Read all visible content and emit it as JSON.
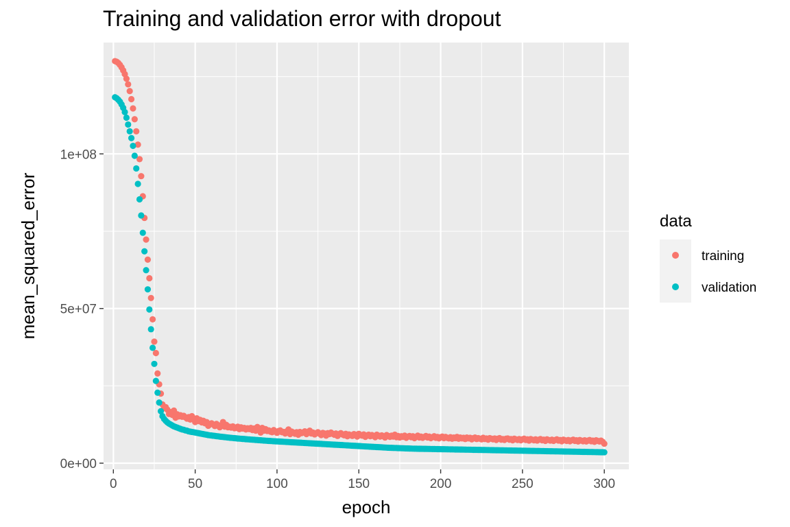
{
  "chart_data": {
    "type": "scatter",
    "title": "Training and validation error with dropout",
    "xlabel": "epoch",
    "ylabel": "mean_squared_error",
    "xlim": [
      -6,
      315
    ],
    "ylim": [
      -2000000,
      136000000
    ],
    "x_ticks": [
      0,
      50,
      100,
      150,
      200,
      250,
      300
    ],
    "x_tick_labels": [
      "0",
      "50",
      "100",
      "150",
      "200",
      "250",
      "300"
    ],
    "y_ticks": [
      0,
      50000000,
      100000000
    ],
    "y_tick_labels": [
      "0e+00",
      "5e+07",
      "1e+08"
    ],
    "grid": true,
    "legend": {
      "title": "data",
      "position": "right",
      "entries": [
        "training",
        "validation"
      ]
    },
    "x_range": [
      1,
      300
    ],
    "series": [
      {
        "name": "training",
        "color": "#F8766D",
        "x_start": 1,
        "x_step": 1,
        "values": [
          130000000,
          129800000,
          129400000,
          128800000,
          128000000,
          127000000,
          125800000,
          124300000,
          122500000,
          120300000,
          117700000,
          114700000,
          111200000,
          107300000,
          103000000,
          98300000,
          92800000,
          86300000,
          79300000,
          72300000,
          65800000,
          59800000,
          53400000,
          46500000,
          39300000,
          35600000,
          29000000,
          25500000,
          22500000,
          19000000,
          17800000,
          18100000,
          17300000,
          15900000,
          16500000,
          15600000,
          17000000,
          14700000,
          15800000,
          15100000,
          15500000,
          15000000,
          15300000,
          14800000,
          14400000,
          14900000,
          14100000,
          15200000,
          14500000,
          13300000,
          14500000,
          13600000,
          14000000,
          13200000,
          13700000,
          12900000,
          13300000,
          12100000,
          12600000,
          12900000,
          12500000,
          12000000,
          12700000,
          12300000,
          11600000,
          12200000,
          13300000,
          11800000,
          12400000,
          11600000,
          11800000,
          11500000,
          11900000,
          11300000,
          11400000,
          11800000,
          11000000,
          11600000,
          11200000,
          11400000,
          10900000,
          11300000,
          11000000,
          11400000,
          10700000,
          11200000,
          10500000,
          11700000,
          10800000,
          9900000,
          11400000,
          10500000,
          11000000,
          10400000,
          10600000,
          10200000,
          10000000,
          10700000,
          10300000,
          9800000,
          10400000,
          10600000,
          10000000,
          10100000,
          9600000,
          10300000,
          10900000,
          9400000,
          10200000,
          9900000,
          9500000,
          10000000,
          9200000,
          10100000,
          9700000,
          9900000,
          10300000,
          9400000,
          9800000,
          10500000,
          9600000,
          9900000,
          9300000,
          9700000,
          10000000,
          9500000,
          9100000,
          9800000,
          9600000,
          8900000,
          9700000,
          9400000,
          9900000,
          9500000,
          9200000,
          9600000,
          8800000,
          9400000,
          9700000,
          9300000,
          9000000,
          9500000,
          8700000,
          9300000,
          9100000,
          8800000,
          9400000,
          9200000,
          8600000,
          9500000,
          9100000,
          8900000,
          9300000,
          8500000,
          9000000,
          9200000,
          8700000,
          9100000,
          8800000,
          8400000,
          9200000,
          8900000,
          8600000,
          9000000,
          8700000,
          8300000,
          9100000,
          8800000,
          8500000,
          8900000,
          8600000,
          9200000,
          8400000,
          8800000,
          8300000,
          8700000,
          8500000,
          8900000,
          8200000,
          8600000,
          8800000,
          8400000,
          8700000,
          8100000,
          8500000,
          8900000,
          8300000,
          8600000,
          8200000,
          8500000,
          8800000,
          8300000,
          8600000,
          8100000,
          8400000,
          8700000,
          8200000,
          8500000,
          8000000,
          8400000,
          8600000,
          8100000,
          8500000,
          8200000,
          8000000,
          8400000,
          7900000,
          8300000,
          8100000,
          8500000,
          7900000,
          8300000,
          8000000,
          8200000,
          7800000,
          8300000,
          8000000,
          8200000,
          7700000,
          8100000,
          8300000,
          7800000,
          8100000,
          7900000,
          7700000,
          8200000,
          7800000,
          8000000,
          7600000,
          8100000,
          7900000,
          7700000,
          8000000,
          7500000,
          7900000,
          8100000,
          7600000,
          7800000,
          7500000,
          7900000,
          8000000,
          7600000,
          7800000,
          7400000,
          7900000,
          7700000,
          7500000,
          7800000,
          7400000,
          7700000,
          7900000,
          7500000,
          7700000,
          7300000,
          7800000,
          7600000,
          7400000,
          7700000,
          7300000,
          7600000,
          7800000,
          7400000,
          7600000,
          7200000,
          7700000,
          7500000,
          7300000,
          7600000,
          7200000,
          7500000,
          7700000,
          7300000,
          7500000,
          7100000,
          7600000,
          7400000,
          7200000,
          7500000,
          7100000,
          7400000,
          7600000,
          7200000,
          7400000,
          7000000,
          7500000,
          7300000,
          7100000,
          7400000,
          7000000,
          7300000,
          7500000,
          7100000,
          7300000,
          6900000,
          7400000,
          7200000,
          7000000,
          7300000,
          6900000,
          6300000
        ]
      },
      {
        "name": "validation",
        "color": "#00BFC4",
        "x_start": 1,
        "x_step": 1,
        "values": [
          118300000,
          118000000,
          117500000,
          116900000,
          116000000,
          114900000,
          113500000,
          111700000,
          109500000,
          107300000,
          105100000,
          102600000,
          99400000,
          95300000,
          90300000,
          85300000,
          80100000,
          74500000,
          68500000,
          62400000,
          56200000,
          49700000,
          43300000,
          37300000,
          32100000,
          26600000,
          22800000,
          19600000,
          16800000,
          15200000,
          14300000,
          13700000,
          13200000,
          12800000,
          12500000,
          12200000,
          11900000,
          11700000,
          11500000,
          11300000,
          11100000,
          10900000,
          10800000,
          10600000,
          10500000,
          10300000,
          10200000,
          10100000,
          10000000,
          9900000,
          9800000,
          9700000,
          9600000,
          9500000,
          9400000,
          9300000,
          9200000,
          9100000,
          9000000,
          8950000,
          8880000,
          8810000,
          8740000,
          8670000,
          8600000,
          8540000,
          8480000,
          8420000,
          8360000,
          8300000,
          8240000,
          8190000,
          8140000,
          8090000,
          8040000,
          7990000,
          7940000,
          7890000,
          7850000,
          7810000,
          7760000,
          7720000,
          7680000,
          7640000,
          7600000,
          7560000,
          7520000,
          7480000,
          7440000,
          7400000,
          7360000,
          7320000,
          7280000,
          7240000,
          7210000,
          7180000,
          7140000,
          7110000,
          7070000,
          7040000,
          7010000,
          6980000,
          6950000,
          6920000,
          6890000,
          6860000,
          6830000,
          6800000,
          6770000,
          6740000,
          6710000,
          6680000,
          6650000,
          6620000,
          6590000,
          6560000,
          6530000,
          6500000,
          6470000,
          6440000,
          6410000,
          6380000,
          6350000,
          6320000,
          6290000,
          6260000,
          6230000,
          6200000,
          6170000,
          6140000,
          6110000,
          6080000,
          6050000,
          6020000,
          5990000,
          5960000,
          5930000,
          5900000,
          5870000,
          5840000,
          5810000,
          5780000,
          5750000,
          5720000,
          5690000,
          5660000,
          5630000,
          5600000,
          5570000,
          5540000,
          5510000,
          5480000,
          5450000,
          5420000,
          5390000,
          5360000,
          5330000,
          5300000,
          5270000,
          5240000,
          5210000,
          5180000,
          5150000,
          5120000,
          5090000,
          5060000,
          5030000,
          5000000,
          4980000,
          4960000,
          4940000,
          4920000,
          4900000,
          4880000,
          4860000,
          4840000,
          4820000,
          4800000,
          4780000,
          4760000,
          4740000,
          4720000,
          4700000,
          4690000,
          4680000,
          4670000,
          4660000,
          4650000,
          4640000,
          4630000,
          4620000,
          4610000,
          4600000,
          4590000,
          4580000,
          4570000,
          4560000,
          4550000,
          4540000,
          4530000,
          4520000,
          4510000,
          4500000,
          4490000,
          4480000,
          4470000,
          4460000,
          4450000,
          4440000,
          4430000,
          4420000,
          4410000,
          4400000,
          4390000,
          4380000,
          4370000,
          4360000,
          4350000,
          4340000,
          4330000,
          4320000,
          4310000,
          4300000,
          4290000,
          4280000,
          4270000,
          4260000,
          4250000,
          4240000,
          4230000,
          4220000,
          4210000,
          4200000,
          4190000,
          4180000,
          4170000,
          4160000,
          4150000,
          4140000,
          4130000,
          4120000,
          4110000,
          4100000,
          4090000,
          4080000,
          4070000,
          4060000,
          4050000,
          4040000,
          4030000,
          4020000,
          4010000,
          4000000,
          3990000,
          3980000,
          3970000,
          3960000,
          3950000,
          3940000,
          3930000,
          3920000,
          3910000,
          3900000,
          3890000,
          3880000,
          3870000,
          3860000,
          3850000,
          3840000,
          3830000,
          3820000,
          3810000,
          3800000,
          3790000,
          3780000,
          3770000,
          3760000,
          3750000,
          3740000,
          3730000,
          3720000,
          3710000,
          3700000,
          3690000,
          3680000,
          3670000,
          3660000,
          3650000,
          3640000,
          3630000,
          3620000,
          3610000,
          3600000,
          3590000,
          3580000,
          3570000,
          3560000,
          3550000,
          3540000,
          3530000
        ]
      }
    ]
  }
}
